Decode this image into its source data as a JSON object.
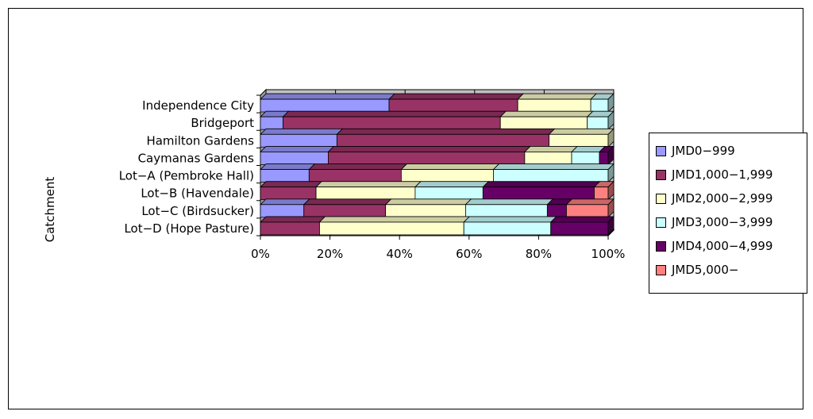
{
  "chart_data": {
    "type": "bar",
    "orientation": "horizontal",
    "stacked": "percent",
    "ylabel": "Catchment",
    "xlim": [
      0,
      100
    ],
    "x_ticks": [
      "0%",
      "20%",
      "40%",
      "60%",
      "80%",
      "100%"
    ],
    "grid": true,
    "legend_position": "right",
    "categories": [
      "Independence City",
      "Bridgeport",
      "Hamilton Gardens",
      "Caymanas Gardens",
      "Lot−A (Pembroke Hall)",
      "Lot−B (Havendale)",
      "Lot−C (Birdsucker)",
      "Lot−D (Hope Pasture)"
    ],
    "series": [
      {
        "name": "JMD0−999",
        "color": "#9999ff",
        "values": [
          37,
          6.5,
          22,
          19.5,
          14,
          0,
          12.5,
          0
        ]
      },
      {
        "name": "JMD1,000−1,999",
        "color": "#993366",
        "values": [
          37,
          62.5,
          61,
          56.5,
          26.5,
          16,
          23.5,
          17
        ]
      },
      {
        "name": "JMD2,000−2,999",
        "color": "#ffffcc",
        "values": [
          21,
          25,
          17,
          13.5,
          26.5,
          28.5,
          23,
          41.5
        ]
      },
      {
        "name": "JMD3,000−3,999",
        "color": "#ccffff",
        "values": [
          5,
          6,
          0,
          8,
          33,
          19.5,
          23.5,
          25
        ]
      },
      {
        "name": "JMD4,000−4,999",
        "color": "#660066",
        "values": [
          0,
          0,
          0,
          2.5,
          0,
          32,
          5.5,
          16.5
        ]
      },
      {
        "name": "JMD5,000−",
        "color": "#ff8080",
        "values": [
          0,
          0,
          0,
          0,
          0,
          4,
          12,
          0
        ]
      }
    ]
  }
}
